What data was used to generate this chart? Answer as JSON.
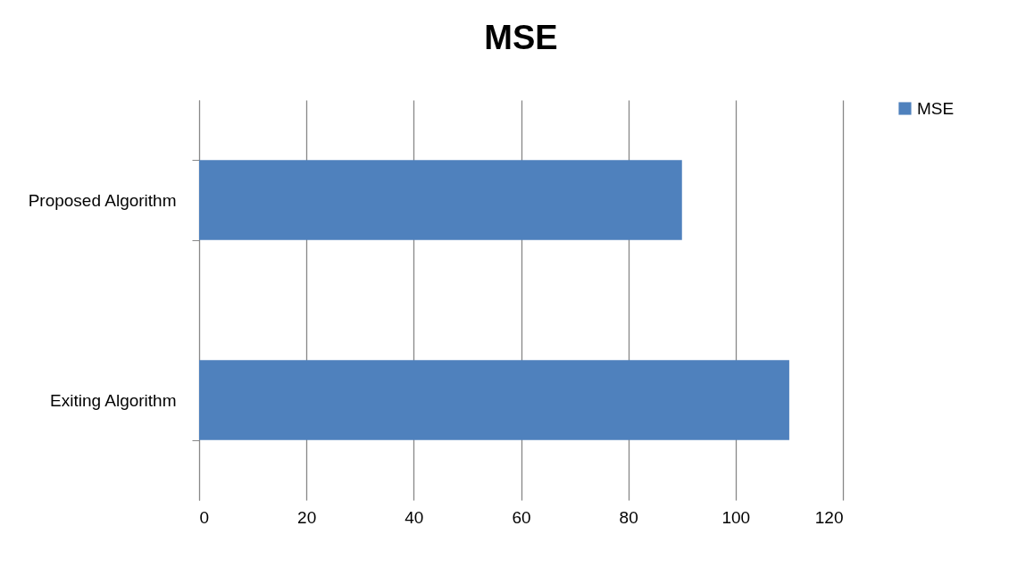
{
  "chart_data": {
    "type": "bar",
    "orientation": "horizontal",
    "title": "MSE",
    "categories": [
      "Proposed Algorithm",
      "Exiting Algorithm"
    ],
    "series": [
      {
        "name": "MSE",
        "color": "#4f81bd",
        "values": [
          90,
          110
        ]
      }
    ],
    "xlim": [
      0,
      120
    ],
    "xticks": [
      0,
      20,
      40,
      60,
      80,
      100,
      120
    ],
    "grid": "x",
    "legend": "right"
  }
}
